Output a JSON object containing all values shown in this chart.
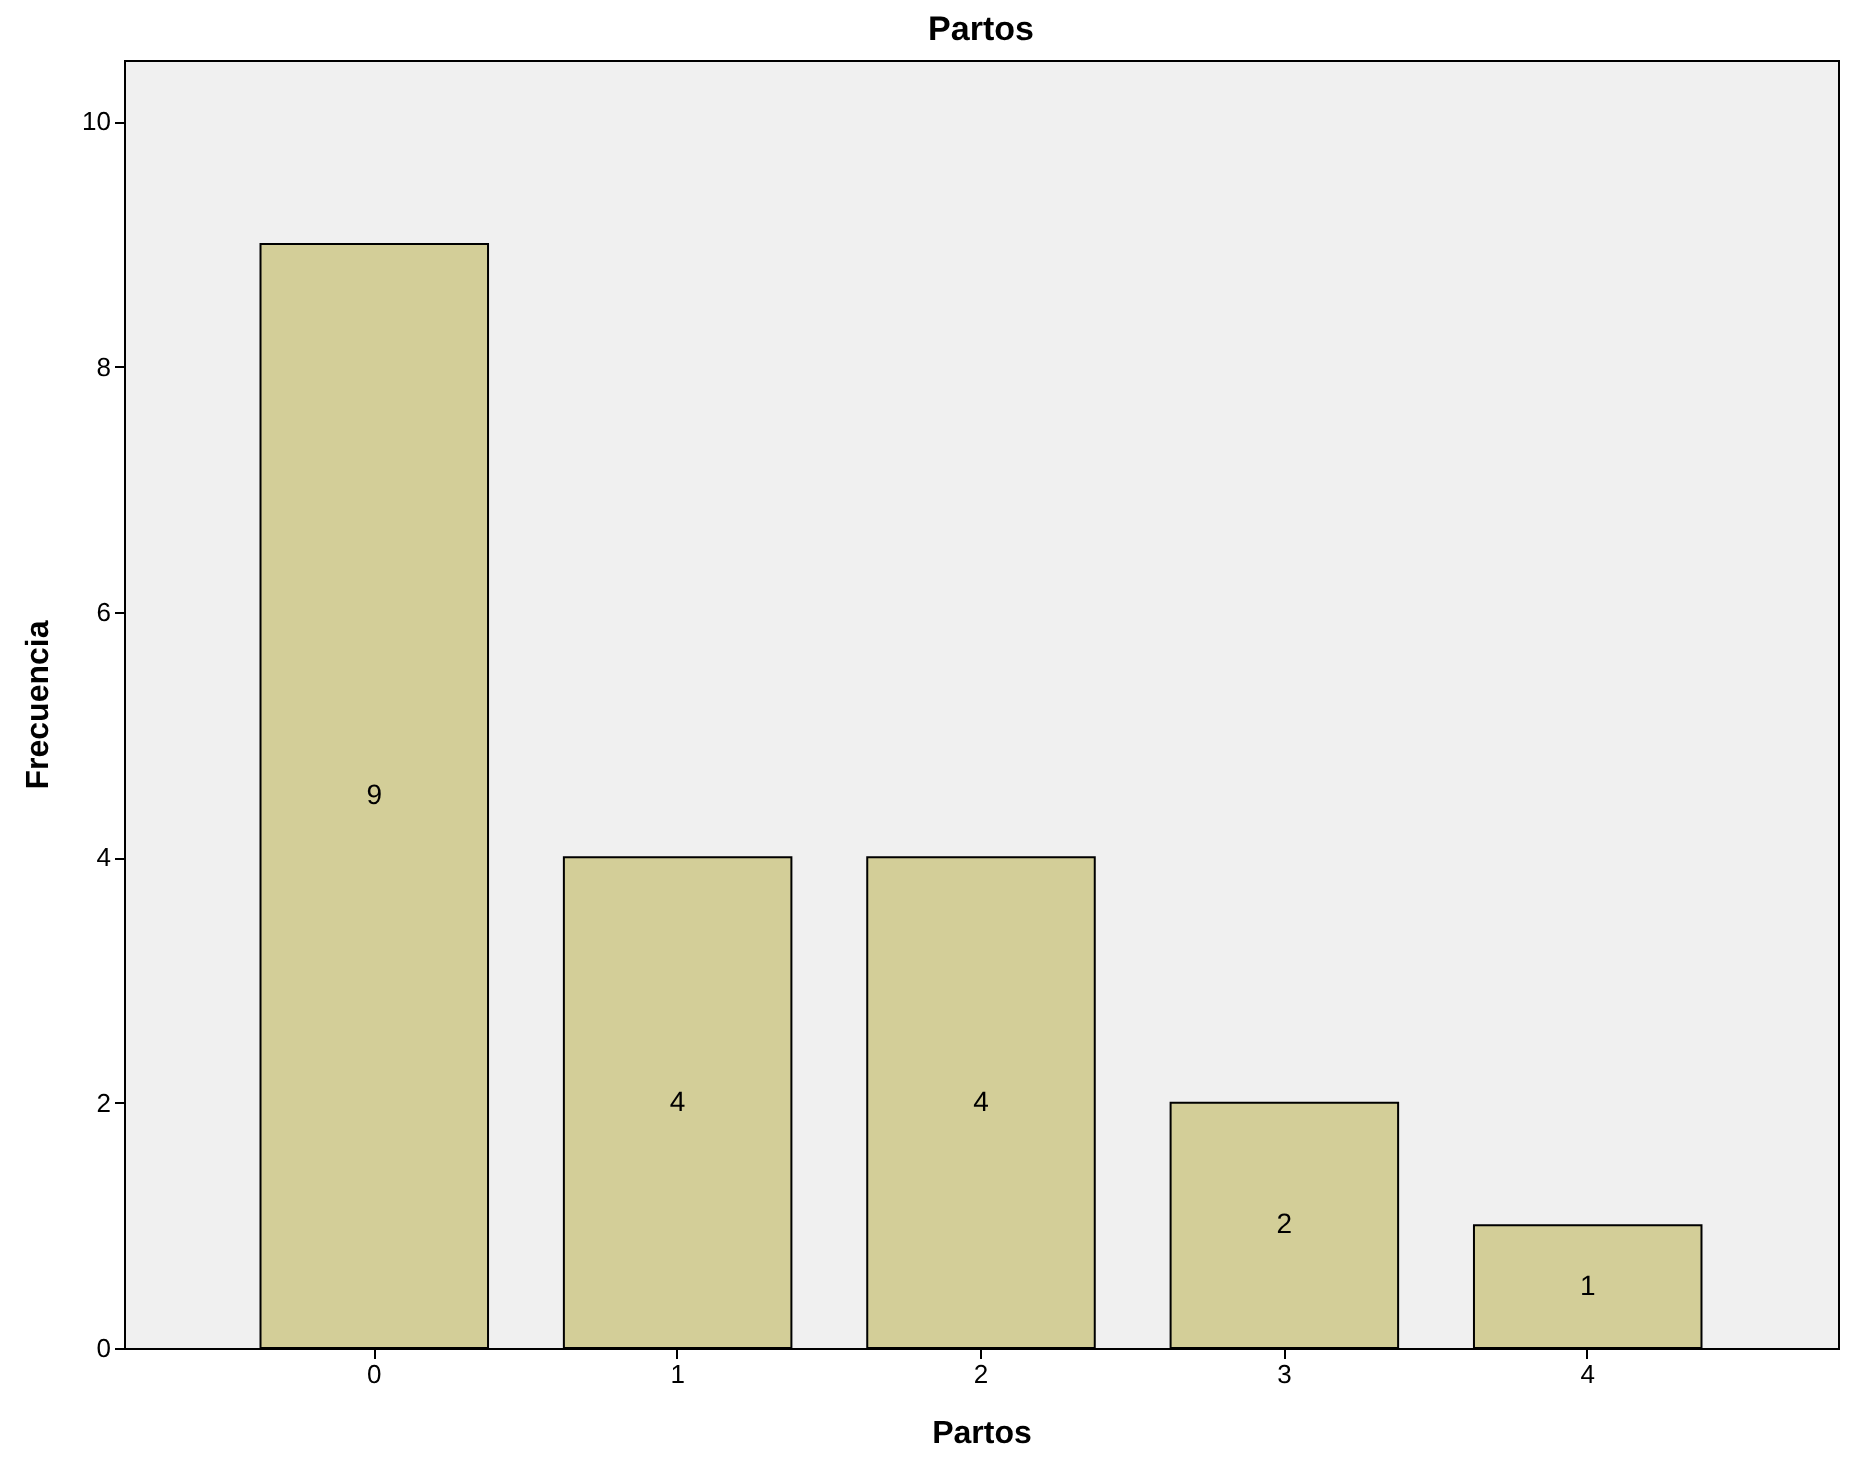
{
  "chart_data": {
    "type": "bar",
    "title": "Partos",
    "xlabel": "Partos",
    "ylabel": "Frecuencia",
    "categories": [
      "0",
      "1",
      "2",
      "3",
      "4"
    ],
    "values": [
      9,
      4,
      4,
      2,
      1
    ],
    "color": "#d3ce98",
    "ylim": [
      0,
      10.5
    ],
    "yticks": [
      0,
      2,
      4,
      6,
      8,
      10
    ],
    "grid": false,
    "data_labels": true
  }
}
